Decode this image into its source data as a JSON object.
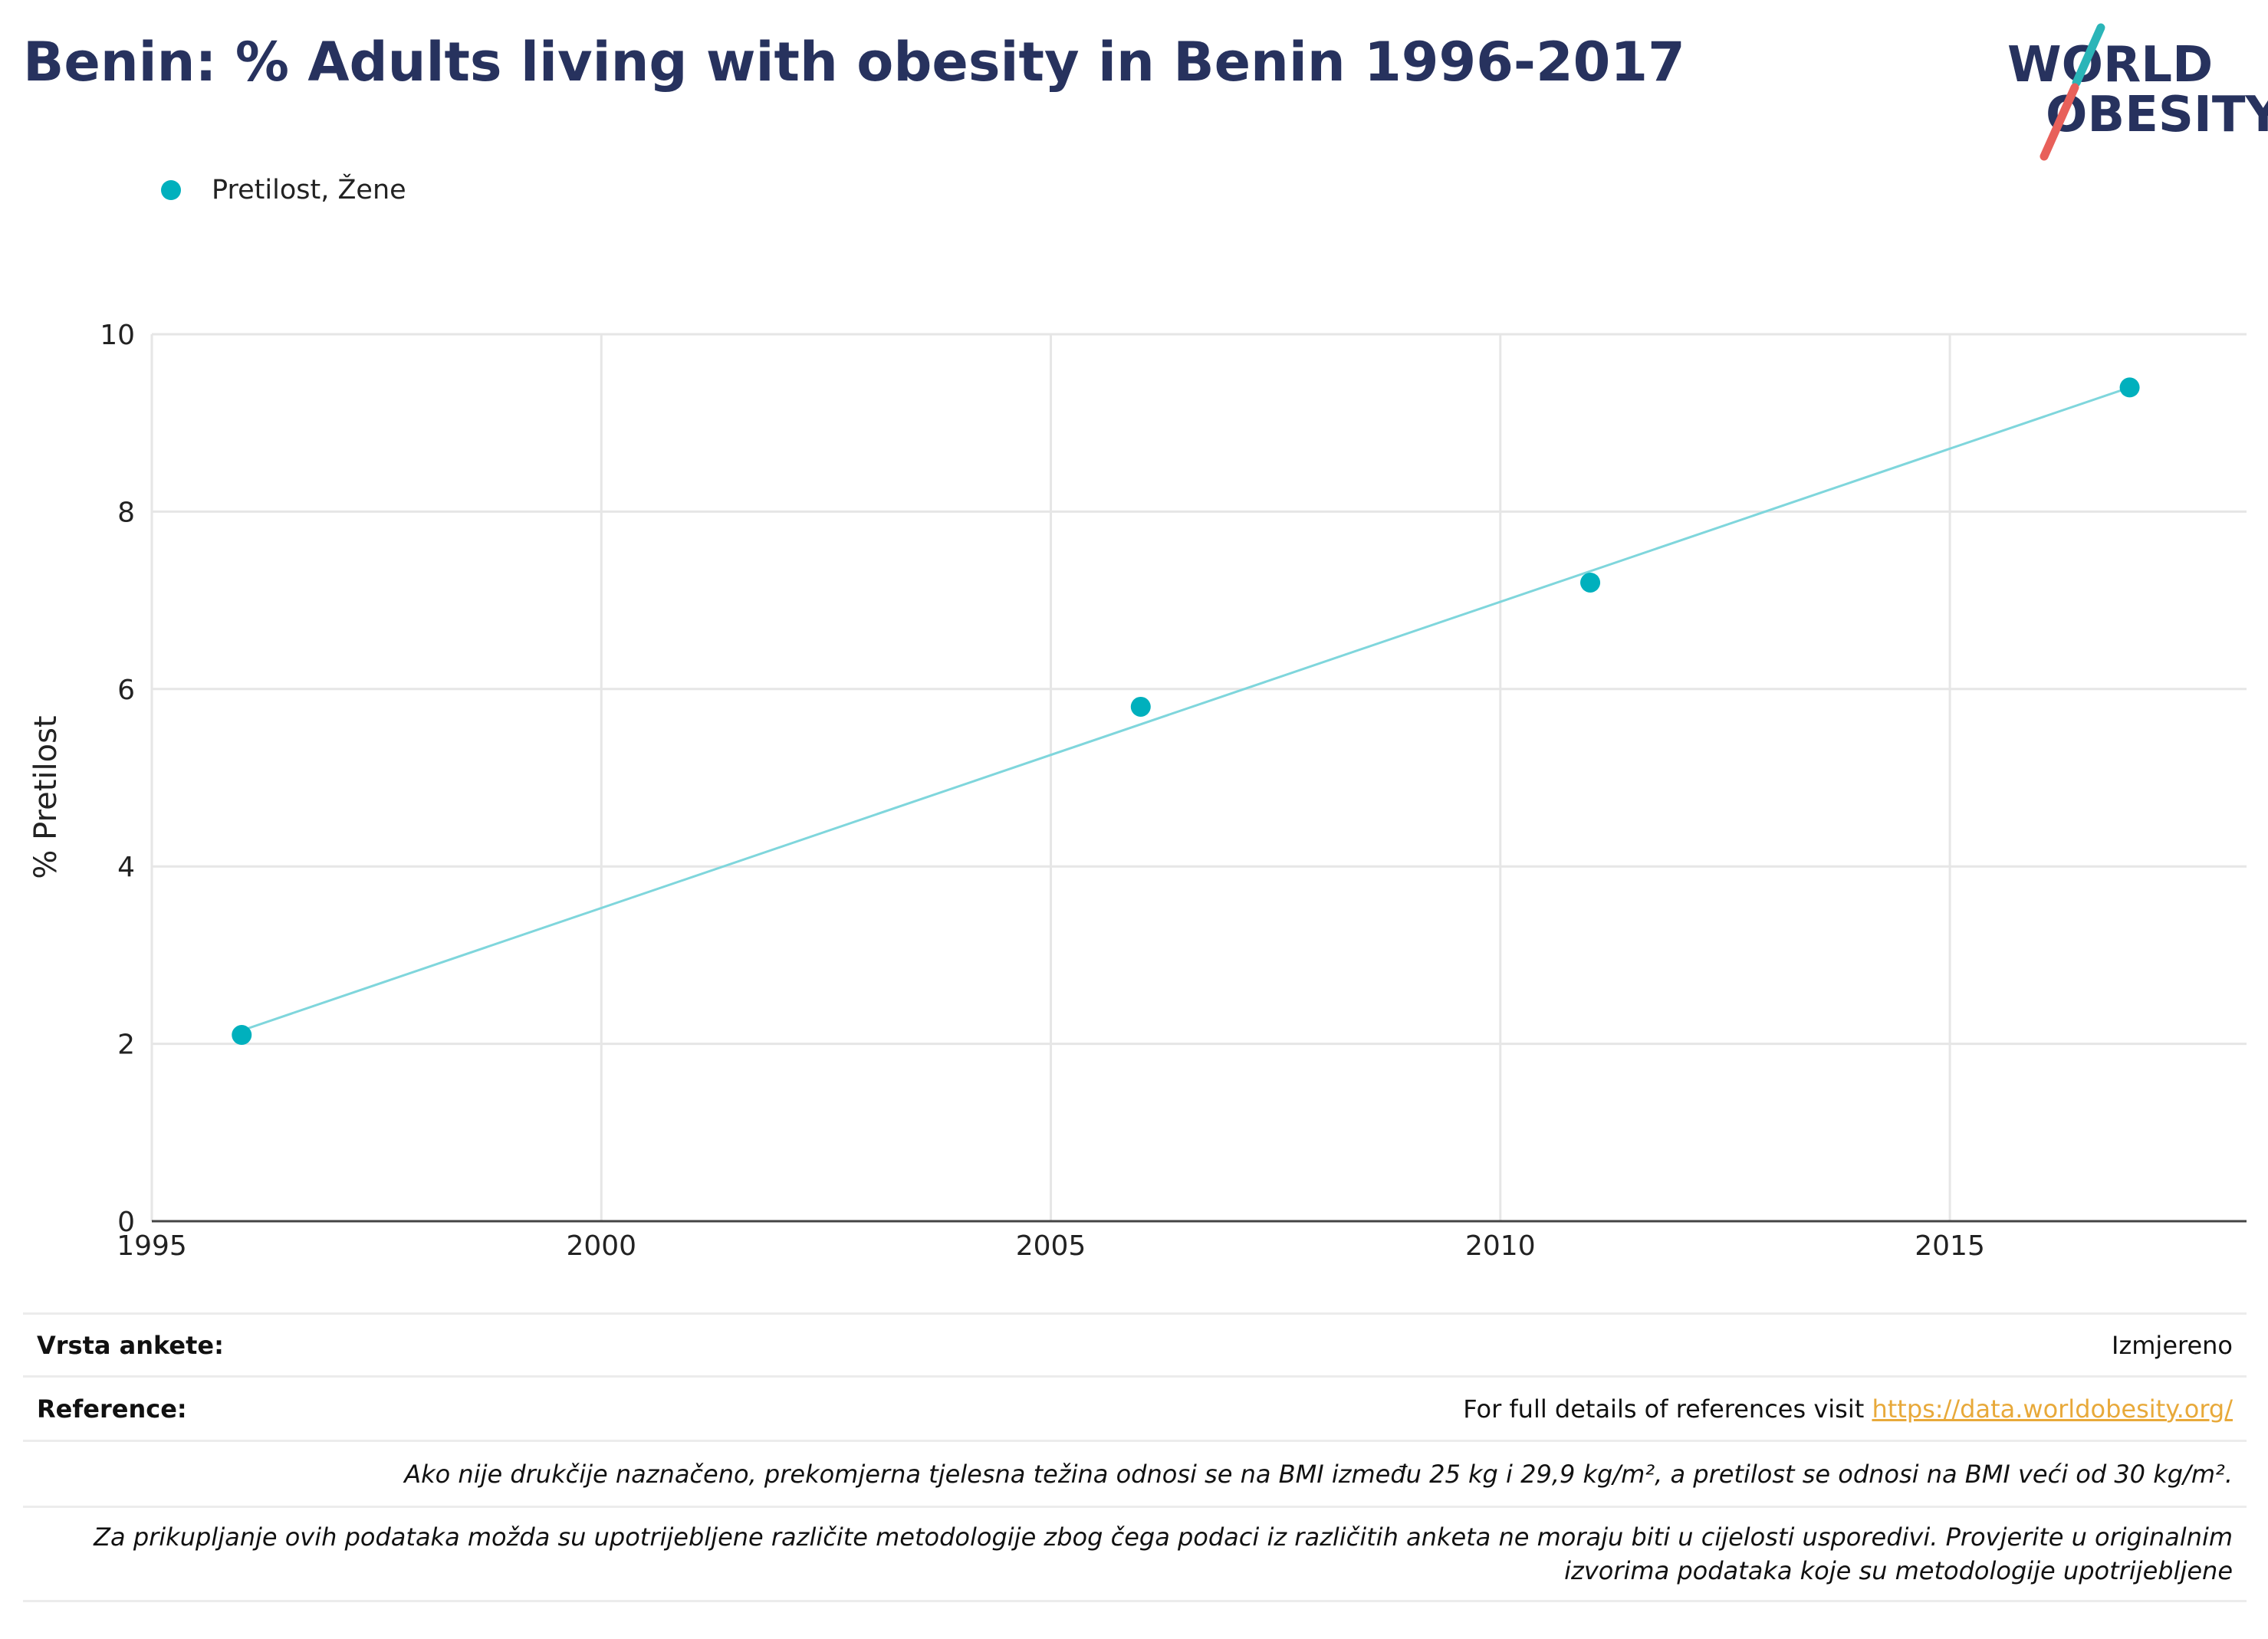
{
  "title": "Benin: % Adults living with obesity in Benin 1996-2017",
  "logo": {
    "line1": "WORLD",
    "line2": "OBESITY"
  },
  "legend": {
    "label": "Pretilost, Žene"
  },
  "colors": {
    "series": "#00b0bd",
    "trend": "#7fd6dc",
    "title": "#27325e",
    "link": "#e8a93a",
    "accent_teal": "#2bb5b8",
    "accent_red": "#e8605a"
  },
  "chart_data": {
    "type": "scatter",
    "title": "Benin: % Adults living with obesity in Benin 1996-2017",
    "xlabel": "",
    "ylabel": "% Pretilost",
    "xlim": [
      1995,
      2018.3
    ],
    "ylim": [
      0,
      10
    ],
    "x_ticks": [
      1995,
      2000,
      2005,
      2010,
      2015
    ],
    "y_ticks": [
      0,
      2,
      4,
      6,
      8,
      10
    ],
    "grid": true,
    "legend_position": "top-left",
    "series": [
      {
        "name": "Pretilost, Žene",
        "x": [
          1996,
          2006,
          2011,
          2017
        ],
        "values": [
          2.1,
          5.8,
          7.2,
          9.4
        ]
      }
    ],
    "trendline": {
      "x": [
        1996,
        2017
      ],
      "y": [
        2.15,
        9.4
      ]
    }
  },
  "footer": {
    "survey_type_label": "Vrsta ankete:",
    "survey_type_value": "Izmjereno",
    "references_label": "Reference:",
    "references_text": "For full details of references visit ",
    "references_link": "https://data.worldobesity.org/",
    "note_bmi": "Ako nije drukčije naznačeno, prekomjerna tjelesna težina odnosi se na BMI između 25 kg i 29,9 kg/m², a pretilost se odnosi na BMI veći od 30 kg/m².",
    "note_methodology": "Za prikupljanje ovih podataka možda su upotrijebljene različite metodologije zbog čega podaci iz različitih anketa ne moraju biti u cijelosti usporedivi. Provjerite u originalnim izvorima podataka koje su metodologije upotrijebljene"
  }
}
